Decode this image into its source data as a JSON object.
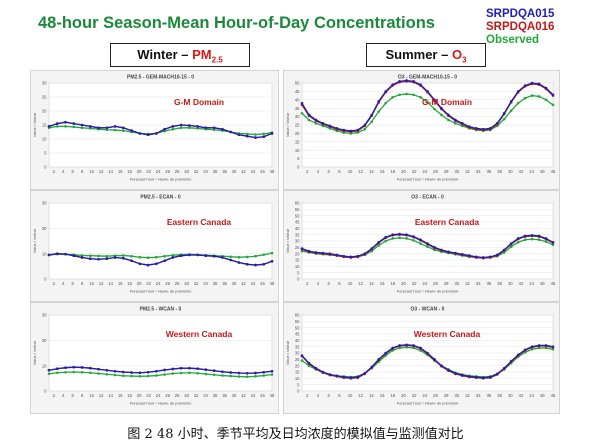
{
  "header": {
    "title": "48-hour Season-Mean Hour-of-Day Concentrations",
    "legend": [
      {
        "label": "SRPDQA015",
        "color": "#2020b0"
      },
      {
        "label": "SRPDQA016",
        "color": "#c01818"
      },
      {
        "label": "Observed",
        "color": "#22a83a"
      }
    ]
  },
  "seasons": {
    "winter": {
      "label": "Winter – ",
      "pollutant": "PM",
      "sub": "2.5"
    },
    "summer": {
      "label": "Summer – ",
      "pollutant": "O",
      "sub": "3"
    }
  },
  "caption": "图 2   48 小时、季节平均及日均浓度的模拟值与监测值对比",
  "chart_data": [
    {
      "type": "line",
      "title": "PM2.5 - GEM-MACH10-15 - 0",
      "region": "G-M Domain",
      "xlabel": "Forecast hour / Heure de prévision",
      "ylabel": "Value / Valeur",
      "x_ticks": [
        2,
        4,
        6,
        8,
        10,
        12,
        14,
        16,
        18,
        20,
        22,
        24,
        26,
        28,
        30,
        32,
        34,
        36,
        38,
        40,
        42,
        44,
        46,
        48
      ],
      "y_ticks": [
        0,
        5,
        10,
        15,
        20,
        25,
        30
      ],
      "ylim": [
        0,
        30
      ],
      "series": [
        {
          "values": [
            14.5,
            15.5,
            16,
            15.5,
            15,
            14.5,
            14,
            14,
            14.5,
            14,
            13,
            12,
            11.5,
            12,
            13.5,
            14.5,
            15,
            14.8,
            14.5,
            14,
            14,
            13.5,
            12.5,
            11.5,
            11,
            10.5,
            10.8,
            12
          ]
        },
        {
          "values": [
            14.5,
            15.5,
            16,
            15.5,
            15,
            14.5,
            14,
            14,
            14.5,
            14,
            13,
            12,
            11.5,
            12,
            13.5,
            14.5,
            15,
            14.8,
            14.5,
            14,
            14,
            13.5,
            12.5,
            11.5,
            11,
            10.5,
            10.8,
            12
          ]
        },
        {
          "values": [
            14,
            14.5,
            14.5,
            14.3,
            14,
            13.8,
            13.5,
            13.3,
            13.2,
            13,
            12.5,
            12,
            11.8,
            12,
            12.8,
            13.5,
            14,
            14,
            13.8,
            13.5,
            13.3,
            13,
            12.5,
            12,
            11.8,
            11.6,
            11.8,
            12.3
          ]
        }
      ]
    },
    {
      "type": "line",
      "title": "PM2.5 - ECAN - 0",
      "region": "Eastern Canada",
      "xlabel": "Forecast hour / Heure de prévision",
      "ylabel": "Value / Valeur",
      "x_ticks": [
        2,
        4,
        6,
        8,
        10,
        12,
        14,
        16,
        18,
        20,
        22,
        24,
        26,
        28,
        30,
        32,
        34,
        36,
        38,
        40,
        42,
        44,
        46,
        48
      ],
      "y_ticks": [
        0,
        10,
        20,
        30
      ],
      "ylim": [
        0,
        30
      ],
      "series": [
        {
          "values": [
            9.5,
            10,
            9.8,
            9.2,
            8.5,
            8,
            7.8,
            8,
            8.5,
            8.2,
            7.2,
            6,
            5.5,
            6,
            7.2,
            8.5,
            9.2,
            9.5,
            9.5,
            9.2,
            9,
            8.5,
            7.5,
            6.5,
            5.8,
            5.5,
            5.8,
            7
          ]
        },
        {
          "values": [
            9.5,
            10,
            9.8,
            9.2,
            8.5,
            8,
            7.8,
            8,
            8.5,
            8.2,
            7.2,
            6,
            5.5,
            6,
            7.2,
            8.5,
            9.2,
            9.5,
            9.5,
            9.2,
            9,
            8.5,
            7.5,
            6.5,
            5.8,
            5.5,
            5.8,
            7
          ]
        },
        {
          "values": [
            9.5,
            9.8,
            9.8,
            9.6,
            9.3,
            9.2,
            9.1,
            9,
            9.2,
            9.3,
            9,
            8.6,
            8.4,
            8.6,
            9,
            9.4,
            9.6,
            9.7,
            9.6,
            9.4,
            9.2,
            9,
            8.8,
            8.6,
            8.7,
            9,
            9.6,
            10.2
          ]
        }
      ]
    },
    {
      "type": "line",
      "title": "PM2.5 - WCAN - 0",
      "region": "Western Canada",
      "xlabel": "Forecast hour / Heure de prévision",
      "ylabel": "Value / Valeur",
      "x_ticks": [
        2,
        4,
        6,
        8,
        10,
        12,
        14,
        16,
        18,
        20,
        22,
        24,
        26,
        28,
        30,
        32,
        34,
        36,
        38,
        40,
        42,
        44,
        46,
        48
      ],
      "y_ticks": [
        0,
        10,
        20,
        30
      ],
      "ylim": [
        0,
        30
      ],
      "series": [
        {
          "values": [
            8.2,
            8.8,
            9.2,
            9.4,
            9.3,
            9,
            8.6,
            8.2,
            7.8,
            7.5,
            7.3,
            7.2,
            7.4,
            7.8,
            8.3,
            8.7,
            9,
            9,
            8.8,
            8.4,
            8,
            7.6,
            7.3,
            7.1,
            7,
            7.1,
            7.4,
            7.8
          ]
        },
        {
          "values": [
            8.2,
            8.8,
            9.2,
            9.4,
            9.3,
            9,
            8.6,
            8.2,
            7.8,
            7.5,
            7.3,
            7.2,
            7.4,
            7.8,
            8.3,
            8.7,
            9,
            9,
            8.8,
            8.4,
            8,
            7.6,
            7.3,
            7.1,
            7,
            7.1,
            7.4,
            7.8
          ]
        },
        {
          "values": [
            6.8,
            7.2,
            7.4,
            7.5,
            7.4,
            7.2,
            6.9,
            6.6,
            6.3,
            6,
            5.9,
            5.8,
            5.9,
            6.1,
            6.5,
            6.9,
            7.1,
            7.2,
            7,
            6.7,
            6.4,
            6.1,
            5.9,
            5.7,
            5.6,
            5.8,
            6.1,
            6.5
          ]
        }
      ]
    },
    {
      "type": "line",
      "title": "O3 - GEM-MACH10-15 - 0",
      "region": "G-M Domain",
      "xlabel": "Forecast hour / Heure de prévision",
      "ylabel": "Value / Valeur",
      "x_ticks": [
        2,
        4,
        6,
        8,
        10,
        12,
        14,
        16,
        18,
        20,
        22,
        24,
        26,
        28,
        30,
        32,
        34,
        36,
        38,
        40,
        42,
        44,
        46,
        48
      ],
      "y_ticks": [
        0,
        5,
        10,
        15,
        20,
        25,
        30,
        35,
        40,
        45,
        50
      ],
      "ylim": [
        0,
        50
      ],
      "series": [
        {
          "values": [
            38,
            31,
            28,
            26,
            24.5,
            23,
            22,
            21.5,
            22,
            25,
            31,
            39,
            45,
            49,
            51,
            51.5,
            51,
            49,
            45,
            40,
            35,
            31,
            28,
            26,
            24,
            23,
            22.5,
            23,
            26,
            32,
            39,
            45,
            48.5,
            50,
            49.5,
            47,
            43
          ]
        },
        {
          "values": [
            37,
            30.5,
            27.5,
            25.5,
            24,
            22.5,
            21.5,
            21,
            21.5,
            24.5,
            30.5,
            38.5,
            44.5,
            48.5,
            50.5,
            51,
            50.5,
            48.5,
            44.5,
            39.5,
            34.5,
            30.5,
            27.5,
            25.5,
            23.5,
            22.5,
            22,
            22.5,
            25.5,
            31.5,
            38.5,
            44.5,
            48,
            49.5,
            49,
            46.5,
            42.5
          ]
        },
        {
          "values": [
            32,
            28,
            26,
            24.5,
            23,
            21.5,
            20.5,
            20,
            20.5,
            22.5,
            27,
            33,
            38,
            41.5,
            43,
            43.5,
            43,
            41.5,
            38.5,
            34.5,
            31,
            28,
            26,
            24.5,
            23,
            22,
            21.5,
            22,
            24.5,
            28.5,
            33.5,
            38,
            41,
            42.5,
            42,
            40,
            37
          ]
        }
      ]
    },
    {
      "type": "line",
      "title": "O3 - ECAN - 0",
      "region": "Eastern Canada",
      "xlabel": "Forecast hour / Heure de prévision",
      "ylabel": "Value / Valeur",
      "x_ticks": [
        2,
        4,
        6,
        8,
        10,
        12,
        14,
        16,
        18,
        20,
        22,
        24,
        26,
        28,
        30,
        32,
        34,
        36,
        38,
        40,
        42,
        44,
        46,
        48
      ],
      "y_ticks": [
        0,
        5,
        10,
        15,
        20,
        25,
        30,
        35,
        40,
        45,
        50,
        55,
        60
      ],
      "ylim": [
        0,
        60
      ],
      "series": [
        {
          "values": [
            24,
            22,
            21,
            20.5,
            20,
            19,
            18,
            17.5,
            18,
            20,
            24,
            29,
            33,
            35,
            35.5,
            35,
            33.5,
            31,
            28,
            25,
            23,
            21.5,
            20.5,
            19.5,
            18.5,
            17.5,
            17,
            17.5,
            19,
            23,
            28,
            32,
            34,
            34.5,
            34,
            32,
            29
          ]
        },
        {
          "values": [
            23.5,
            21.5,
            20.5,
            20,
            19.5,
            18.5,
            17.5,
            17,
            17.5,
            19.5,
            23.5,
            28.5,
            32.5,
            34.5,
            35,
            34.5,
            33,
            30.5,
            27.5,
            24.5,
            22.5,
            21,
            20,
            19,
            18,
            17,
            16.5,
            17,
            18.5,
            22.5,
            27.5,
            31.5,
            33.5,
            34,
            33.5,
            31.5,
            28.5
          ]
        },
        {
          "values": [
            22,
            21,
            20,
            19.5,
            19,
            18.5,
            17.5,
            17,
            17.5,
            19,
            22,
            26.5,
            30,
            32,
            32.5,
            32,
            30.5,
            28,
            25.5,
            23,
            21.5,
            20.5,
            19.5,
            18.5,
            17.5,
            17,
            16.5,
            17,
            18,
            21,
            25.5,
            29,
            31,
            31.5,
            31,
            29.5,
            27
          ]
        }
      ]
    },
    {
      "type": "line",
      "title": "O3 - WCAN - 0",
      "region": "Western Canada",
      "xlabel": "Forecast hour / Heure de prévision",
      "ylabel": "Value / Valeur",
      "x_ticks": [
        2,
        4,
        6,
        8,
        10,
        12,
        14,
        16,
        18,
        20,
        22,
        24,
        26,
        28,
        30,
        32,
        34,
        36,
        38,
        40,
        42,
        44,
        46,
        48
      ],
      "y_ticks": [
        0,
        5,
        10,
        15,
        20,
        25,
        30,
        35,
        40,
        45,
        50,
        55,
        60
      ],
      "ylim": [
        0,
        60
      ],
      "series": [
        {
          "values": [
            28,
            22,
            18,
            15,
            13,
            12,
            11,
            10.5,
            11,
            14,
            19,
            25,
            30,
            34,
            36,
            36.5,
            36,
            34,
            30,
            25,
            20,
            16.5,
            14,
            12.5,
            11.5,
            11,
            10.5,
            11,
            13.5,
            18,
            23.5,
            28.5,
            32.5,
            35,
            36,
            36,
            35
          ]
        },
        {
          "values": [
            27.5,
            21.5,
            17.5,
            14.5,
            12.5,
            11.5,
            10.5,
            10,
            10.5,
            13.5,
            18.5,
            24.5,
            29.5,
            33.5,
            35.5,
            36,
            35.5,
            33.5,
            29.5,
            24.5,
            19.5,
            16,
            13.5,
            12,
            11,
            10.5,
            10,
            10.5,
            13,
            17.5,
            23,
            28,
            32,
            34.5,
            35.5,
            35.5,
            34.5
          ]
        },
        {
          "values": [
            24,
            20,
            17,
            14.5,
            13,
            12,
            11.5,
            11,
            11.5,
            14,
            18,
            23,
            28,
            32,
            34,
            34.5,
            34,
            32,
            28.5,
            24,
            20,
            17,
            14.5,
            13,
            12,
            11.5,
            11,
            11.5,
            13.5,
            17,
            22,
            27,
            30.5,
            33,
            34,
            34,
            33
          ]
        }
      ]
    }
  ]
}
